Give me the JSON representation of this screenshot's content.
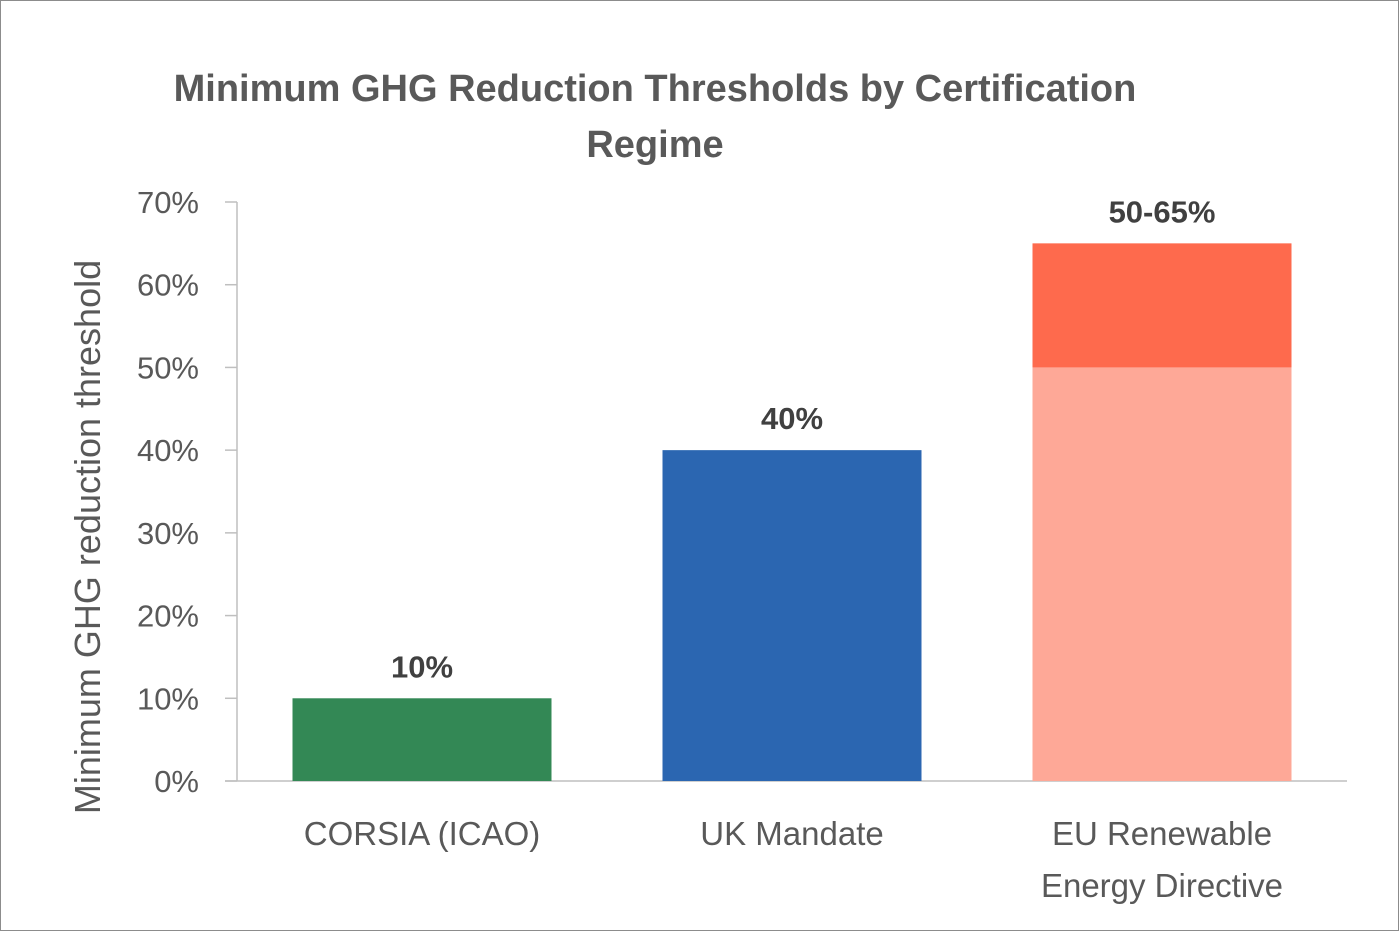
{
  "chart_data": {
    "type": "bar",
    "title_lines": [
      "Minimum GHG Reduction Thresholds by Certification",
      "Regime"
    ],
    "ylabel": "Minimum GHG reduction threshold",
    "xlabel": "",
    "ylim": [
      0,
      70
    ],
    "y_ticks": [
      0,
      10,
      20,
      30,
      40,
      50,
      60,
      70
    ],
    "y_tick_labels": [
      "0%",
      "10%",
      "20%",
      "30%",
      "40%",
      "50%",
      "60%",
      "70%"
    ],
    "categories": [
      [
        "CORSIA (ICAO)"
      ],
      [
        "UK Mandate"
      ],
      [
        "EU Renewable",
        "Energy Directive"
      ]
    ],
    "bars": [
      {
        "segments": [
          {
            "from": 0,
            "to": 10,
            "color": "#338855"
          }
        ],
        "label": "10%"
      },
      {
        "segments": [
          {
            "from": 0,
            "to": 40,
            "color": "#2b66b1"
          }
        ],
        "label": "40%"
      },
      {
        "segments": [
          {
            "from": 0,
            "to": 50,
            "color": "#fea897"
          },
          {
            "from": 50,
            "to": 65,
            "color": "#fe6a4d"
          }
        ],
        "label": "50-65%"
      }
    ],
    "grid": false,
    "legend": "none"
  }
}
